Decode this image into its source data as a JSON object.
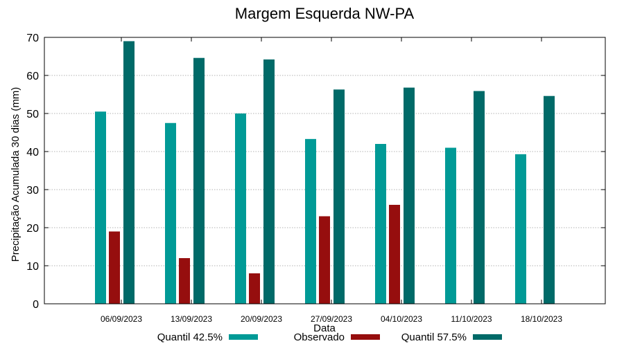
{
  "chart_data": {
    "type": "bar",
    "title": "Margem Esquerda NW-PA",
    "xlabel": "Data",
    "ylabel": "Precipitação Acumulada 30 dias (mm)",
    "ylim": [
      0,
      70
    ],
    "yticks": [
      0,
      10,
      20,
      30,
      40,
      50,
      60,
      70
    ],
    "grid": true,
    "legend_position": "bottom",
    "categories": [
      "06/09/2023",
      "13/09/2023",
      "20/09/2023",
      "27/09/2023",
      "04/10/2023",
      "11/10/2023",
      "18/10/2023"
    ],
    "series": [
      {
        "name": "Quantil 42.5%",
        "color": "#009a96",
        "values": [
          50.5,
          47.5,
          50,
          43.3,
          42,
          41,
          39.3
        ]
      },
      {
        "name": "Observado",
        "color": "#960e0e",
        "values": [
          19,
          12,
          8,
          23,
          26,
          null,
          null
        ]
      },
      {
        "name": "Quantil 57.5%",
        "color": "#006a68",
        "values": [
          69,
          64.6,
          64.2,
          56.3,
          56.8,
          55.9,
          54.6
        ]
      }
    ]
  }
}
